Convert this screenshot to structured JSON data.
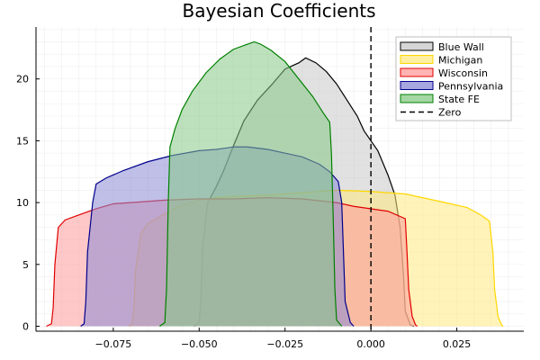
{
  "chart_data": {
    "type": "area",
    "title": "Bayesian Coefficients",
    "xlabel": "",
    "ylabel": "",
    "xlim": [
      -0.0975,
      0.0445
    ],
    "ylim": [
      -0.4,
      24.2
    ],
    "xticks": [
      -0.075,
      -0.05,
      -0.025,
      0.0,
      0.025
    ],
    "xtick_labels": [
      "−0.075",
      "−0.050",
      "−0.025",
      "0.000",
      "0.025"
    ],
    "yticks": [
      0,
      5,
      10,
      15,
      20
    ],
    "ytick_labels": [
      "0",
      "5",
      "10",
      "15",
      "20"
    ],
    "grid": true,
    "legend_position": "top-right",
    "series": [
      {
        "name": "Blue Wall",
        "fill": "#c8c8c8",
        "stroke": "#000000",
        "points": [
          [
            -0.0515,
            0
          ],
          [
            -0.05,
            0.3
          ],
          [
            -0.0495,
            2
          ],
          [
            -0.049,
            6.5
          ],
          [
            -0.0475,
            10
          ],
          [
            -0.045,
            11.3
          ],
          [
            -0.043,
            12.5
          ],
          [
            -0.04,
            14.6
          ],
          [
            -0.037,
            16.6
          ],
          [
            -0.033,
            18.3
          ],
          [
            -0.029,
            19.5
          ],
          [
            -0.025,
            20.8
          ],
          [
            -0.021,
            21.3
          ],
          [
            -0.019,
            21.7
          ],
          [
            -0.016,
            21.3
          ],
          [
            -0.013,
            20.6
          ],
          [
            -0.01,
            19.6
          ],
          [
            -0.007,
            18.3
          ],
          [
            -0.004,
            17.0
          ],
          [
            -0.002,
            15.8
          ],
          [
            0.0,
            15.0
          ],
          [
            0.002,
            14.2
          ],
          [
            0.005,
            12.2
          ],
          [
            0.007,
            10.6
          ],
          [
            0.0085,
            8.0
          ],
          [
            0.0095,
            4.0
          ],
          [
            0.01,
            1.2
          ],
          [
            0.0115,
            0.1
          ],
          [
            0.0125,
            0
          ]
        ]
      },
      {
        "name": "Michigan",
        "fill": "#ffea80",
        "stroke": "#ffd700",
        "points": [
          [
            -0.0705,
            0
          ],
          [
            -0.0695,
            0.2
          ],
          [
            -0.069,
            1.5
          ],
          [
            -0.0685,
            4.5
          ],
          [
            -0.067,
            7.5
          ],
          [
            -0.065,
            8.3
          ],
          [
            -0.06,
            9.1
          ],
          [
            -0.055,
            9.8
          ],
          [
            -0.05,
            10.2
          ],
          [
            -0.045,
            10.4
          ],
          [
            -0.04,
            10.5
          ],
          [
            -0.03,
            10.6
          ],
          [
            -0.02,
            10.8
          ],
          [
            -0.01,
            11.0
          ],
          [
            0.0,
            10.9
          ],
          [
            0.01,
            10.7
          ],
          [
            0.02,
            10.1
          ],
          [
            0.028,
            9.6
          ],
          [
            0.032,
            9.0
          ],
          [
            0.0345,
            8.5
          ],
          [
            0.0355,
            6.0
          ],
          [
            0.036,
            3.0
          ],
          [
            0.037,
            0.8
          ],
          [
            0.038,
            0.1
          ],
          [
            0.0385,
            0
          ]
        ]
      },
      {
        "name": "Wisconsin",
        "fill": "#ff9a9a",
        "stroke": "#e00000",
        "points": [
          [
            -0.0945,
            0
          ],
          [
            -0.093,
            0.2
          ],
          [
            -0.0925,
            1.5
          ],
          [
            -0.092,
            5.0
          ],
          [
            -0.091,
            8.0
          ],
          [
            -0.089,
            8.6
          ],
          [
            -0.085,
            9.0
          ],
          [
            -0.08,
            9.5
          ],
          [
            -0.075,
            9.9
          ],
          [
            -0.07,
            10.0
          ],
          [
            -0.06,
            10.2
          ],
          [
            -0.05,
            10.3
          ],
          [
            -0.04,
            10.3
          ],
          [
            -0.03,
            10.4
          ],
          [
            -0.02,
            10.3
          ],
          [
            -0.01,
            10.0
          ],
          [
            -0.005,
            9.7
          ],
          [
            0.0,
            9.5
          ],
          [
            0.005,
            9.3
          ],
          [
            0.01,
            8.7
          ],
          [
            0.0105,
            6.0
          ],
          [
            0.011,
            3.0
          ],
          [
            0.012,
            0.8
          ],
          [
            0.013,
            0.1
          ],
          [
            0.0135,
            0
          ]
        ]
      },
      {
        "name": "Pennsylvania",
        "fill": "#8a8ad6",
        "stroke": "#00008b",
        "points": [
          [
            -0.0845,
            0
          ],
          [
            -0.0835,
            0.2
          ],
          [
            -0.083,
            2.0
          ],
          [
            -0.0825,
            6.0
          ],
          [
            -0.081,
            10.0
          ],
          [
            -0.08,
            11.5
          ],
          [
            -0.077,
            12.0
          ],
          [
            -0.072,
            12.6
          ],
          [
            -0.065,
            13.3
          ],
          [
            -0.058,
            13.8
          ],
          [
            -0.05,
            14.2
          ],
          [
            -0.045,
            14.3
          ],
          [
            -0.04,
            14.5
          ],
          [
            -0.036,
            14.5
          ],
          [
            -0.03,
            14.3
          ],
          [
            -0.025,
            14.0
          ],
          [
            -0.02,
            13.7
          ],
          [
            -0.015,
            13.1
          ],
          [
            -0.012,
            12.5
          ],
          [
            -0.0095,
            11.7
          ],
          [
            -0.0085,
            10.0
          ],
          [
            -0.008,
            6.0
          ],
          [
            -0.0075,
            2.0
          ],
          [
            -0.006,
            0.3
          ],
          [
            -0.005,
            0
          ]
        ]
      },
      {
        "name": "State FE",
        "fill": "#86c986",
        "stroke": "#008000",
        "points": [
          [
            -0.0615,
            0
          ],
          [
            -0.06,
            0.3
          ],
          [
            -0.0595,
            3.0
          ],
          [
            -0.059,
            10.0
          ],
          [
            -0.0585,
            14.5
          ],
          [
            -0.057,
            16.0
          ],
          [
            -0.055,
            17.5
          ],
          [
            -0.052,
            19.0
          ],
          [
            -0.048,
            20.5
          ],
          [
            -0.044,
            21.6
          ],
          [
            -0.04,
            22.4
          ],
          [
            -0.036,
            22.8
          ],
          [
            -0.034,
            23.0
          ],
          [
            -0.032,
            22.8
          ],
          [
            -0.029,
            22.3
          ],
          [
            -0.025,
            21.4
          ],
          [
            -0.021,
            20.0
          ],
          [
            -0.017,
            18.6
          ],
          [
            -0.014,
            17.3
          ],
          [
            -0.012,
            16.5
          ],
          [
            -0.0115,
            14.0
          ],
          [
            -0.011,
            9.0
          ],
          [
            -0.0105,
            3.0
          ],
          [
            -0.01,
            0.5
          ],
          [
            -0.0085,
            0
          ]
        ]
      }
    ],
    "reference_line": {
      "name": "Zero",
      "x": 0.0,
      "stroke": "#000000",
      "dash": true
    },
    "fill_opacity": 0.55
  }
}
